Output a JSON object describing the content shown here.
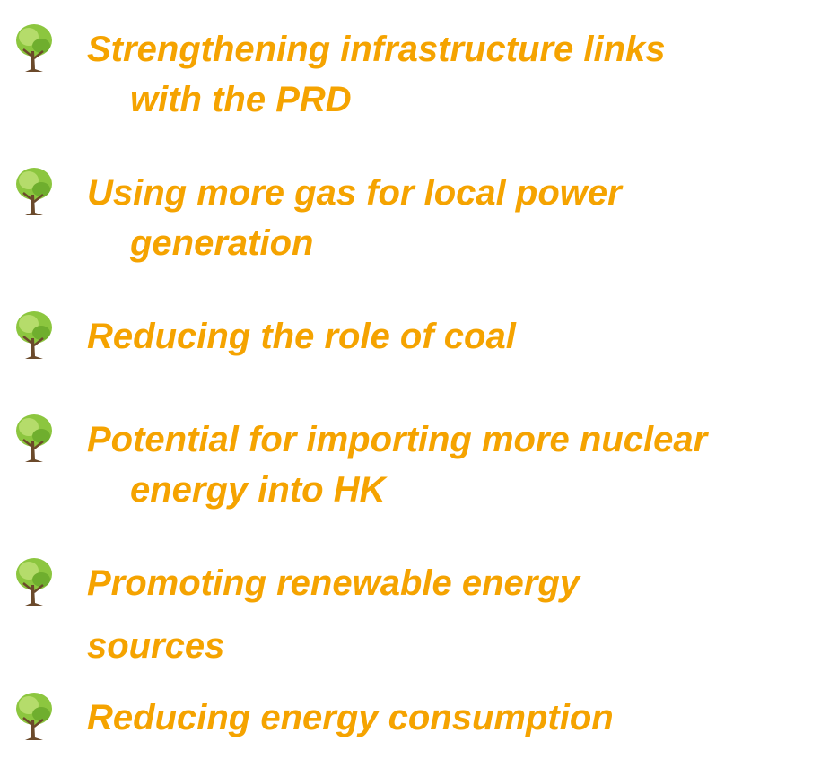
{
  "items": [
    {
      "lines": [
        "Strengthening infrastructure links",
        "with the PRD"
      ]
    },
    {
      "lines": [
        "Using more gas for local power",
        "generation"
      ]
    },
    {
      "lines": [
        "Reducing the role of coal"
      ]
    },
    {
      "lines": [
        "Potential for importing more nuclear",
        "energy into HK"
      ]
    },
    {
      "lines": [
        "Promoting renewable energy",
        "sources"
      ]
    },
    {
      "lines": [
        "Reducing energy consumption"
      ]
    }
  ]
}
